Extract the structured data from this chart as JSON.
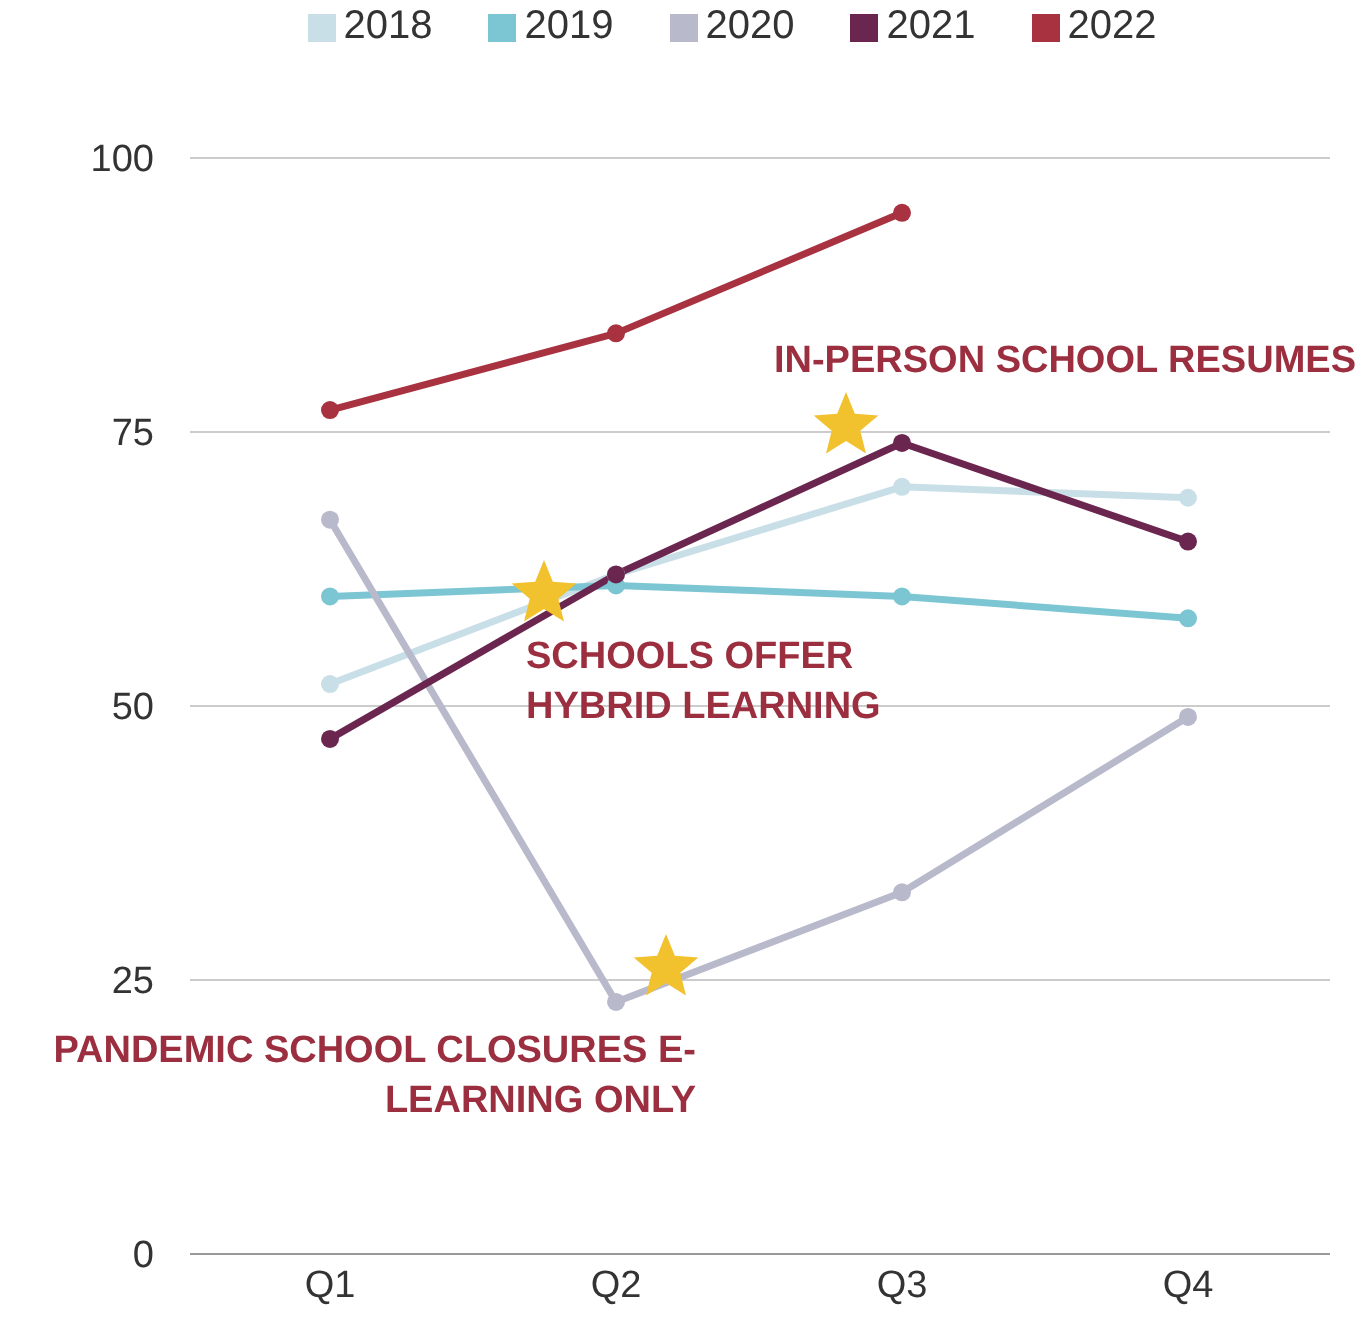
{
  "chart_data": {
    "type": "line",
    "categories": [
      "Q1",
      "Q2",
      "Q3",
      "Q4"
    ],
    "series": [
      {
        "name": "2018",
        "color": "#c9dfe8",
        "values": [
          52,
          62,
          70,
          69
        ]
      },
      {
        "name": "2019",
        "color": "#7cc6d3",
        "values": [
          60,
          61,
          60,
          58
        ]
      },
      {
        "name": "2020",
        "color": "#b8bacc",
        "values": [
          67,
          23,
          33,
          49
        ]
      },
      {
        "name": "2021",
        "color": "#6b2650",
        "values": [
          47,
          62,
          74,
          65
        ]
      },
      {
        "name": "2022",
        "color": "#a8323f",
        "values": [
          77,
          84,
          95,
          null
        ]
      }
    ],
    "ylim": [
      0,
      100
    ],
    "yticks": [
      0,
      25,
      50,
      75,
      100
    ],
    "grid": "y",
    "legend": "top",
    "marker": "circle",
    "line_style": "solid",
    "annotations": [
      "IN-PERSON SCHOOL RESUMES",
      "SCHOOLS OFFER HYBRID LEARNING",
      "PANDEMIC SCHOOL CLOSURES E-LEARNING ONLY"
    ]
  }
}
